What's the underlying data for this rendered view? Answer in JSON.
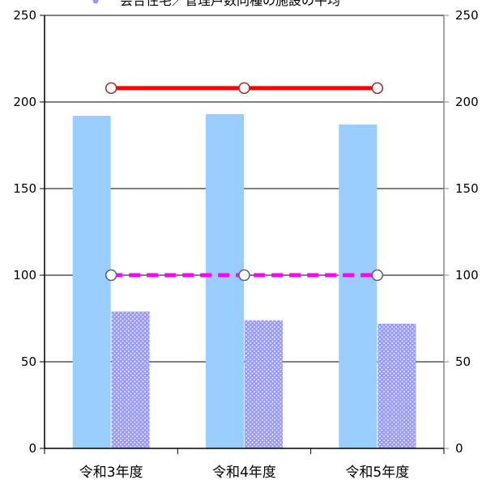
{
  "chart_data": {
    "type": "bar",
    "categories": [
      "令和3年度",
      "令和4年度",
      "令和5年度"
    ],
    "series": [
      {
        "kind": "bar",
        "axis": "left",
        "color": "#99ccff",
        "values": [
          192,
          193,
          187
        ]
      },
      {
        "kind": "bar",
        "axis": "left",
        "color": "#9999ff",
        "pattern": "dots",
        "values": [
          79,
          74,
          72
        ]
      },
      {
        "kind": "line",
        "axis": "left",
        "color": "#ff0000",
        "style": "solid",
        "marker": "circle-hollow",
        "values": [
          208,
          208,
          208
        ]
      },
      {
        "kind": "line",
        "axis": "left",
        "color": "#ff00ff",
        "style": "dashed",
        "marker": "circle-hollow",
        "values": [
          100,
          100,
          100
        ]
      }
    ],
    "legend_text": "会合住宅／管理戸数同種の施設の平均",
    "y_left": {
      "min": 0,
      "max": 250,
      "ticks": [
        0,
        50,
        100,
        150,
        200,
        250
      ]
    },
    "y_right": {
      "min": 0,
      "max": 250,
      "ticks": [
        0,
        50,
        100,
        150,
        200,
        250
      ]
    },
    "grid": true,
    "legend_position": "top"
  }
}
